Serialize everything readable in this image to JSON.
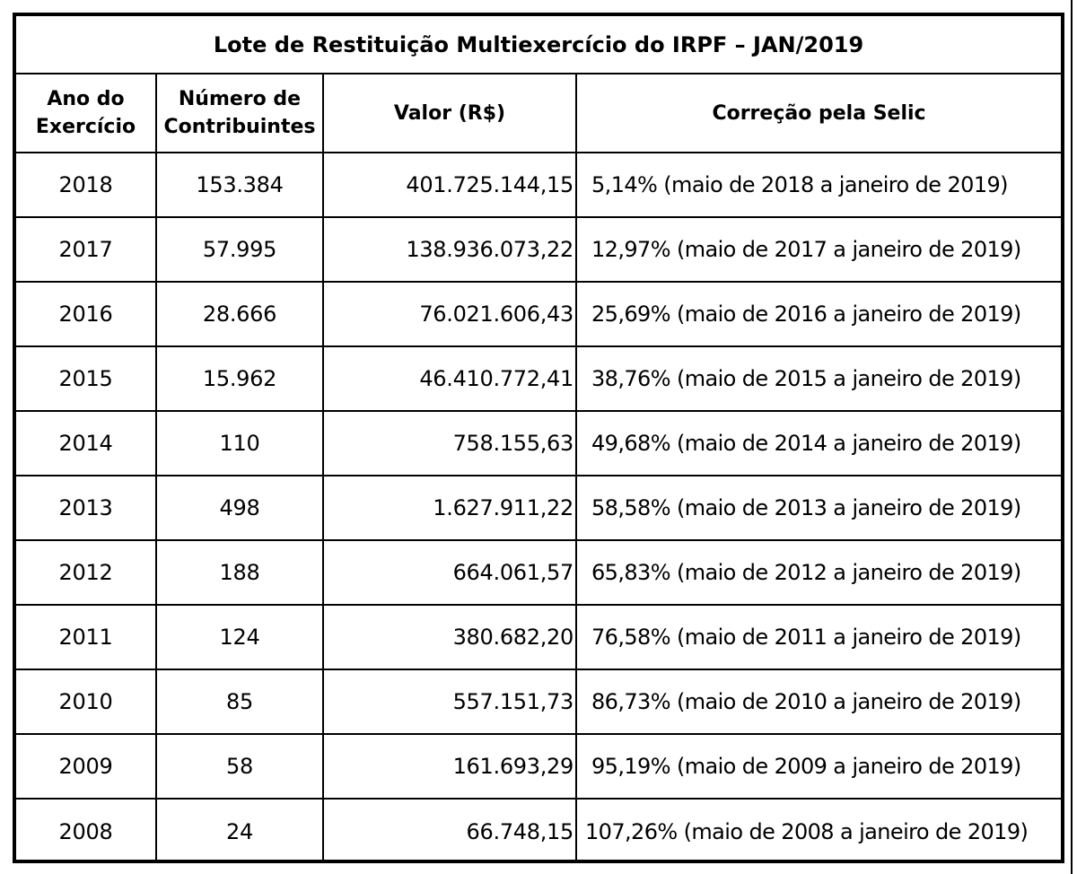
{
  "title": "Lote de Restituição Multiexercício do IRPF – JAN/2019",
  "headers": {
    "ano": "Ano do Exercício",
    "contribuintes": "Número de Contribuintes",
    "valor": "Valor (R$)",
    "correcao": "Correção pela Selic"
  },
  "rows": [
    {
      "ano": "2018",
      "contribuintes": "153.384",
      "valor": "401.725.144,15",
      "correcao": "5,14% (maio de 2018 a janeiro de 2019)"
    },
    {
      "ano": "2017",
      "contribuintes": "57.995",
      "valor": "138.936.073,22",
      "correcao": "12,97% (maio de 2017 a janeiro de 2019)"
    },
    {
      "ano": "2016",
      "contribuintes": "28.666",
      "valor": "76.021.606,43",
      "correcao": "25,69% (maio de 2016 a janeiro de 2019)"
    },
    {
      "ano": "2015",
      "contribuintes": "15.962",
      "valor": "46.410.772,41",
      "correcao": "38,76% (maio de 2015 a janeiro de 2019)"
    },
    {
      "ano": "2014",
      "contribuintes": "110",
      "valor": "758.155,63",
      "correcao": "49,68% (maio de 2014 a janeiro de 2019)"
    },
    {
      "ano": "2013",
      "contribuintes": "498",
      "valor": "1.627.911,22",
      "correcao": "58,58% (maio de 2013 a janeiro de 2019)"
    },
    {
      "ano": "2012",
      "contribuintes": "188",
      "valor": "664.061,57",
      "correcao": "65,83% (maio de 2012 a janeiro de 2019)"
    },
    {
      "ano": "2011",
      "contribuintes": "124",
      "valor": "380.682,20",
      "correcao": "76,58% (maio de 2011 a janeiro de 2019)"
    },
    {
      "ano": "2010",
      "contribuintes": "85",
      "valor": "557.151,73",
      "correcao": "86,73% (maio de 2010 a janeiro de 2019)"
    },
    {
      "ano": "2009",
      "contribuintes": "58",
      "valor": "161.693,29",
      "correcao": "95,19% (maio de 2009 a janeiro de 2019)"
    },
    {
      "ano": "2008",
      "contribuintes": "24",
      "valor": "66.748,15",
      "correcao": "107,26% (maio de 2008 a janeiro de 2019)"
    }
  ]
}
